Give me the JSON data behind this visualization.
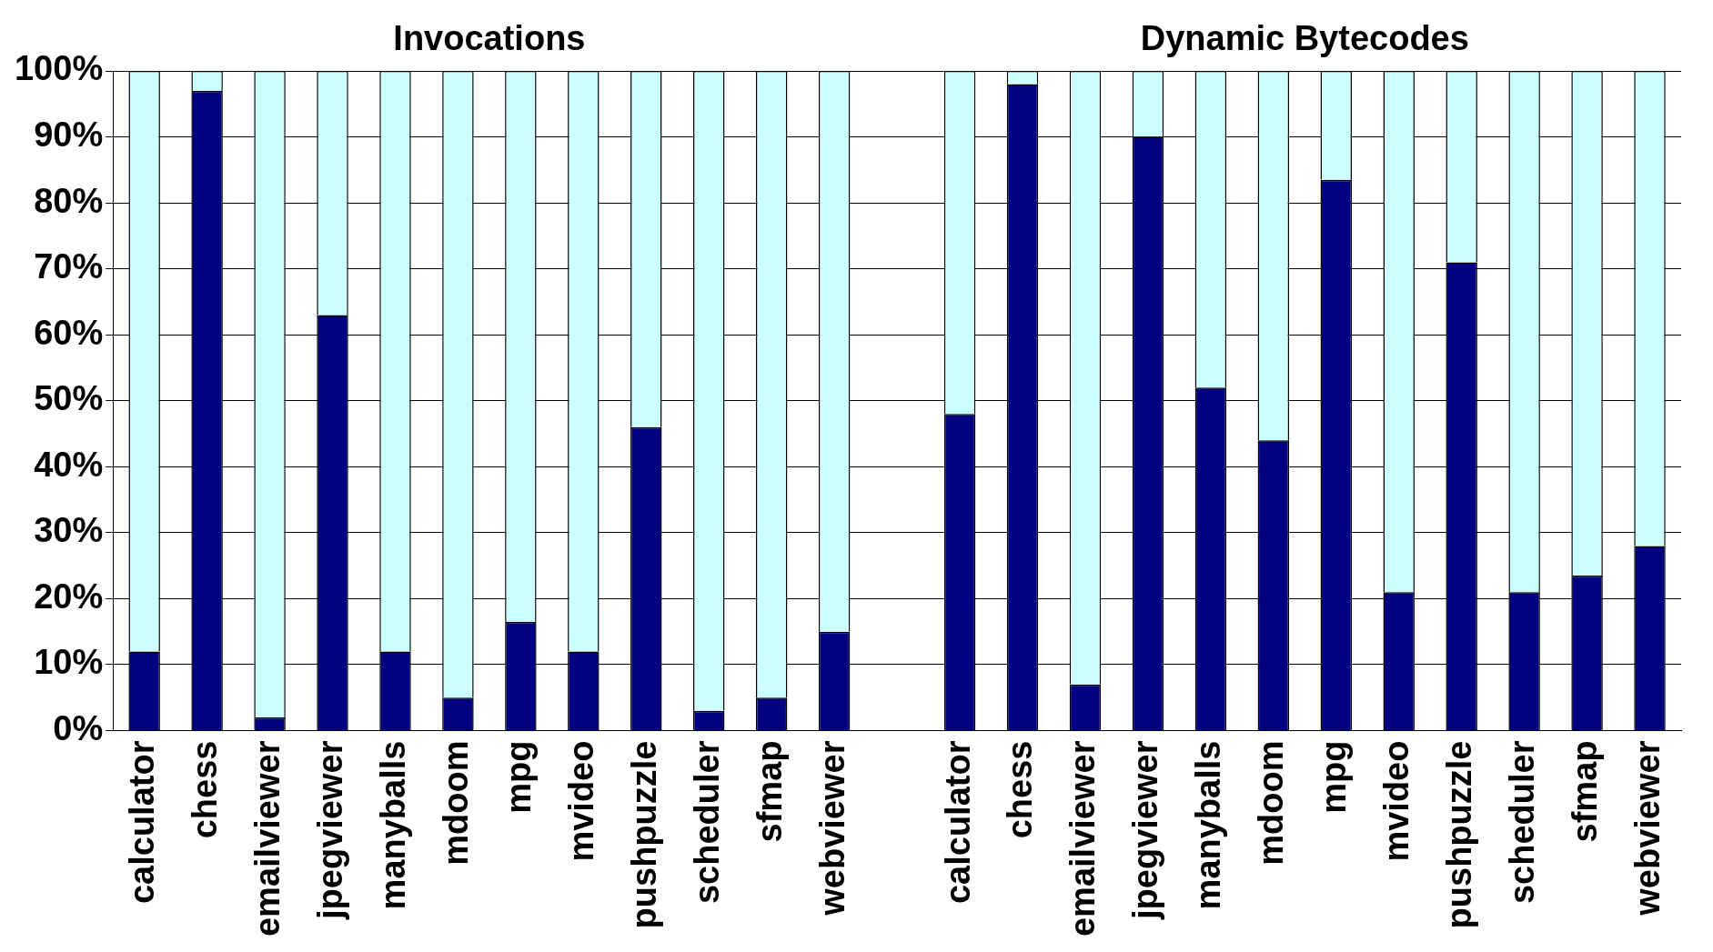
{
  "chart_data": {
    "type": "bar",
    "stacked": true,
    "categories": [
      "calculator",
      "chess",
      "emailviewer",
      "jpegviewer",
      "manyballs",
      "mdoom",
      "mpg",
      "mvideo",
      "pushpuzzle",
      "scheduler",
      "sfmap",
      "webviewer",
      null,
      "calculator",
      "chess",
      "emailviewer",
      "jpegviewer",
      "manyballs",
      "mdoom",
      "mpg",
      "mvideo",
      "pushpuzzle",
      "scheduler",
      "sfmap",
      "webviewer"
    ],
    "series": [
      {
        "color": "#000080",
        "values": [
          12,
          97,
          2,
          63,
          12,
          5,
          16.5,
          12,
          46,
          3,
          5,
          15,
          null,
          48,
          98,
          7,
          90,
          52,
          44,
          83.5,
          21,
          71,
          21,
          23.5,
          28
        ]
      },
      {
        "color": "#ccffff",
        "values": [
          88,
          3,
          98,
          37,
          88,
          95,
          83.5,
          88,
          54,
          97,
          95,
          85,
          null,
          52,
          2,
          93,
          10,
          48,
          56,
          16.5,
          79,
          29,
          79,
          76.5,
          72
        ]
      }
    ],
    "ylim": [
      0,
      100
    ],
    "yticks": [
      {
        "value": 0,
        "label": "0%"
      },
      {
        "value": 10,
        "label": "10%"
      },
      {
        "value": 20,
        "label": "20%"
      },
      {
        "value": 30,
        "label": "30%"
      },
      {
        "value": 40,
        "label": "40%"
      },
      {
        "value": 50,
        "label": "50%"
      },
      {
        "value": 60,
        "label": "60%"
      },
      {
        "value": 70,
        "label": "70%"
      },
      {
        "value": 80,
        "label": "80%"
      },
      {
        "value": 90,
        "label": "90%"
      },
      {
        "value": 100,
        "label": "100%"
      }
    ],
    "grid": "y",
    "legend": false,
    "annotations": [
      "Invocations",
      "Dynamic Bytecodes"
    ]
  }
}
